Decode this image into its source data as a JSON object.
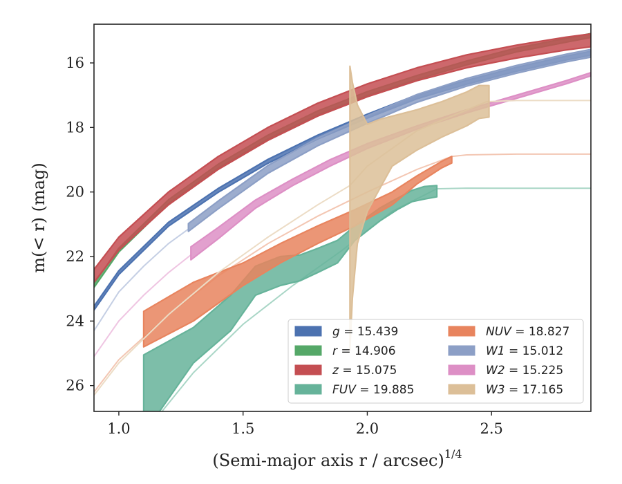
{
  "chart_data": {
    "type": "area",
    "xlabel": "(Semi-major axis r / arcsec)",
    "xlabel_exponent": "1/4",
    "ylabel": "m(< r) (mag)",
    "xlim": [
      0.9,
      2.9
    ],
    "ylim": [
      26.8,
      14.8
    ],
    "y_inverted": true,
    "x_ticks": [
      1.0,
      1.5,
      2.0,
      2.5
    ],
    "x_tick_labels": [
      "1.0",
      "1.5",
      "2.0",
      "2.5"
    ],
    "y_ticks": [
      16,
      18,
      20,
      22,
      24,
      26
    ],
    "y_tick_labels": [
      "16",
      "18",
      "20",
      "22",
      "24",
      "26"
    ],
    "legend_position": "lower-right",
    "series": [
      {
        "key": "g",
        "label": "g = 15.439",
        "color": "#4c72b0",
        "faint_color": "#b5c2dc",
        "faint_x_end": 0.95,
        "x": [
          0.9,
          1.0,
          1.2,
          1.4,
          1.6,
          1.8,
          2.0,
          2.2,
          2.4,
          2.6,
          2.8,
          2.9
        ],
        "y": [
          23.6,
          22.5,
          21.0,
          19.95,
          19.05,
          18.3,
          17.65,
          17.05,
          16.6,
          16.2,
          15.85,
          15.7
        ],
        "band": 0.06
      },
      {
        "key": "r",
        "label": "r = 14.906",
        "color": "#55a868",
        "faint_color": "#b9dcbf",
        "faint_x_end": 2.65,
        "x": [
          0.9,
          1.0,
          1.2,
          1.4,
          1.6,
          1.8,
          2.0,
          2.2,
          2.4,
          2.6,
          2.8,
          2.9
        ],
        "y": [
          22.9,
          21.8,
          20.3,
          19.2,
          18.3,
          17.55,
          16.95,
          16.45,
          16.0,
          15.6,
          15.3,
          15.15
        ],
        "band": 0.06
      },
      {
        "key": "z",
        "label": "z = 15.075",
        "color": "#c44e52",
        "faint_color": "#e8b3b4",
        "faint_x_end": 0.95,
        "x": [
          0.9,
          1.0,
          1.2,
          1.4,
          1.6,
          1.8,
          2.0,
          2.2,
          2.4,
          2.6,
          2.8,
          2.9
        ],
        "y": [
          22.6,
          21.6,
          20.2,
          19.1,
          18.2,
          17.45,
          16.85,
          16.35,
          15.95,
          15.65,
          15.4,
          15.3
        ],
        "band": 0.2
      },
      {
        "key": "FUV",
        "label": "FUV = 19.885",
        "color": "#66b39a",
        "faint_color": "#a9d6c6",
        "faint_x": [
          0.9,
          1.0,
          1.1,
          1.3,
          1.5,
          1.7,
          1.9,
          2.1,
          2.28,
          2.4,
          2.6,
          2.9
        ],
        "faint_y": [
          29.5,
          28.5,
          27.5,
          25.6,
          24.1,
          22.9,
          21.8,
          20.6,
          19.9,
          19.88,
          19.885,
          19.885
        ],
        "x": [
          1.1,
          1.3,
          1.45,
          1.55,
          1.65,
          1.73,
          1.8,
          1.88,
          1.95,
          2.05,
          2.12,
          2.18,
          2.23,
          2.28
        ],
        "y_upper": [
          25.05,
          24.2,
          23.2,
          22.3,
          22.0,
          21.95,
          21.75,
          21.5,
          21.05,
          20.5,
          20.2,
          19.95,
          19.83,
          19.8
        ],
        "y_lower": [
          27.5,
          25.3,
          24.3,
          23.2,
          22.9,
          22.75,
          22.5,
          22.2,
          21.5,
          20.9,
          20.55,
          20.3,
          20.22,
          20.15
        ]
      },
      {
        "key": "NUV",
        "label": "NUV = 18.827",
        "color": "#e8845e",
        "faint_color": "#f3c6b2",
        "faint_x": [
          0.9,
          1.0,
          1.2,
          1.4,
          1.6,
          1.8,
          2.0,
          2.2,
          2.34,
          2.4,
          2.6,
          2.9
        ],
        "faint_y": [
          26.2,
          25.2,
          23.8,
          22.6,
          21.6,
          20.75,
          20.0,
          19.3,
          18.9,
          18.85,
          18.827,
          18.827
        ],
        "x": [
          1.1,
          1.3,
          1.5,
          1.65,
          1.8,
          1.95,
          2.1,
          2.2,
          2.3,
          2.34
        ],
        "y_upper": [
          23.7,
          22.8,
          22.2,
          21.6,
          21.05,
          20.55,
          20.0,
          19.5,
          19.05,
          18.9
        ],
        "y_lower": [
          24.8,
          24.0,
          22.9,
          22.2,
          21.6,
          21.05,
          20.4,
          19.75,
          19.25,
          19.1
        ]
      },
      {
        "key": "W1",
        "label": "W1 = 15.012",
        "color": "#8c9fc6",
        "faint_color": "#c5cfe4",
        "faint_x": [
          0.9,
          1.0,
          1.1,
          1.2,
          1.28
        ],
        "faint_y": [
          24.3,
          23.1,
          22.3,
          21.6,
          21.15
        ],
        "x": [
          1.28,
          1.4,
          1.6,
          1.8,
          2.0,
          2.2,
          2.4,
          2.6,
          2.8,
          2.9
        ],
        "y": [
          21.1,
          20.4,
          19.3,
          18.45,
          17.75,
          17.1,
          16.6,
          16.2,
          15.85,
          15.7
        ],
        "band": 0.12
      },
      {
        "key": "W2",
        "label": "W2 = 15.225",
        "color": "#dd8fc5",
        "faint_color": "#efc5e2",
        "faint_x": [
          0.9,
          1.0,
          1.1,
          1.2,
          1.29
        ],
        "faint_y": [
          25.1,
          24.0,
          23.2,
          22.5,
          21.95
        ],
        "x": [
          1.29,
          1.4,
          1.55,
          1.7,
          1.85,
          2.0,
          2.2,
          2.4,
          2.6,
          2.8,
          2.9
        ],
        "y_upper": [
          21.7,
          21.1,
          20.25,
          19.6,
          19.0,
          18.5,
          17.95,
          17.45,
          17.0,
          16.55,
          16.3
        ],
        "y_lower": [
          22.1,
          21.45,
          20.5,
          19.8,
          19.2,
          18.65,
          18.05,
          17.55,
          17.1,
          16.65,
          16.4
        ]
      },
      {
        "key": "W3",
        "label": "W3 = 17.165",
        "color": "#dcbf98",
        "faint_color": "#ecdcc5",
        "faint_x": [
          0.9,
          1.0,
          1.2,
          1.4,
          1.6,
          1.8,
          1.93,
          2.0,
          2.2,
          2.48,
          2.6,
          2.9
        ],
        "faint_y": [
          26.3,
          25.3,
          23.8,
          22.5,
          21.4,
          20.4,
          19.8,
          19.2,
          18.1,
          17.2,
          17.165,
          17.165
        ],
        "x": [
          1.93,
          1.94,
          1.96,
          2.0,
          2.05,
          2.1,
          2.2,
          2.3,
          2.4,
          2.45,
          2.49
        ],
        "y_upper": [
          16.1,
          16.6,
          17.3,
          17.9,
          17.75,
          17.65,
          17.45,
          17.2,
          16.9,
          16.7,
          16.7
        ],
        "y_lower": [
          24.9,
          23.3,
          21.6,
          20.6,
          19.9,
          19.2,
          18.7,
          18.3,
          17.95,
          17.72,
          17.68
        ]
      }
    ]
  }
}
